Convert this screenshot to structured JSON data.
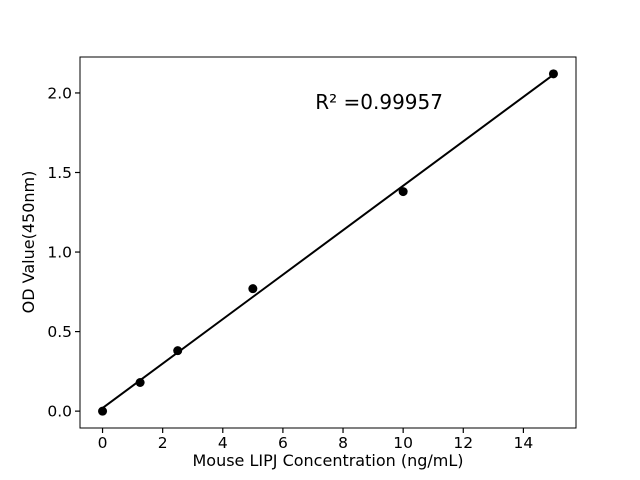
{
  "chart_data": {
    "type": "scatter",
    "title": "",
    "xlabel": "Mouse LIPJ Concentration (ng/mL)",
    "ylabel": "OD Value(450nm)",
    "points": [
      {
        "x": 0,
        "y": 0.0
      },
      {
        "x": 1.25,
        "y": 0.18
      },
      {
        "x": 2.5,
        "y": 0.38
      },
      {
        "x": 5,
        "y": 0.77
      },
      {
        "x": 10,
        "y": 1.38
      },
      {
        "x": 15,
        "y": 2.12
      }
    ],
    "fit_line": {
      "slope": 0.1397,
      "intercept": 0.0195,
      "x_start": 0,
      "x_end": 15
    },
    "annotation": {
      "text": "R² =0.99957",
      "x": 9.2,
      "y": 1.9
    },
    "x_ticks": {
      "values": [
        0,
        2,
        4,
        6,
        8,
        10,
        12,
        14
      ],
      "labels": [
        "0",
        "2",
        "4",
        "6",
        "8",
        "10",
        "12",
        "14"
      ]
    },
    "y_ticks": {
      "values": [
        0.0,
        0.5,
        1.0,
        1.5,
        2.0
      ],
      "labels": [
        "0.0",
        "0.5",
        "1.0",
        "1.5",
        "2.0"
      ]
    },
    "xlim": [
      -0.75,
      15.75
    ],
    "ylim": [
      -0.106,
      2.226
    ],
    "grid": false,
    "legend": null,
    "colors": {
      "marker": "#000000",
      "line": "#000000",
      "spine": "#000000",
      "text": "#000000",
      "background": "#ffffff"
    }
  }
}
